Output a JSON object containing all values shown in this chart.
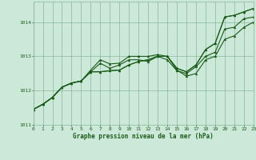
{
  "xlabel": "Graphe pression niveau de la mer (hPa)",
  "background_color": "#cce8d8",
  "line_color": "#1a5c1a",
  "grid_color": "#88b898",
  "xlim": [
    0,
    23
  ],
  "ylim": [
    1011.0,
    1014.6
  ],
  "yticks": [
    1011,
    1012,
    1013,
    1014
  ],
  "xticks": [
    0,
    1,
    2,
    3,
    4,
    5,
    6,
    7,
    8,
    9,
    10,
    11,
    12,
    13,
    14,
    15,
    16,
    17,
    18,
    19,
    20,
    21,
    22,
    23
  ],
  "series": [
    [
      1011.45,
      1011.6,
      1011.8,
      1012.1,
      1012.22,
      1012.28,
      1012.6,
      1012.9,
      1012.78,
      1012.8,
      1013.0,
      1013.0,
      1013.0,
      1013.05,
      1013.0,
      1012.65,
      1012.55,
      1012.75,
      1013.2,
      1013.38,
      1014.15,
      1014.2,
      1014.3,
      1014.4
    ],
    [
      1011.45,
      1011.6,
      1011.8,
      1012.1,
      1012.22,
      1012.28,
      1012.55,
      1012.55,
      1012.58,
      1012.6,
      1012.75,
      1012.85,
      1012.9,
      1013.0,
      1013.0,
      1012.65,
      1012.55,
      1012.75,
      1013.2,
      1013.38,
      1014.15,
      1014.2,
      1014.3,
      1014.4
    ],
    [
      1011.45,
      1011.6,
      1011.8,
      1012.1,
      1012.22,
      1012.28,
      1012.55,
      1012.8,
      1012.65,
      1012.75,
      1012.9,
      1012.9,
      1012.85,
      1013.0,
      1012.9,
      1012.58,
      1012.5,
      1012.7,
      1013.0,
      1013.12,
      1013.8,
      1013.85,
      1014.1,
      1014.15
    ],
    [
      1011.45,
      1011.6,
      1011.8,
      1012.1,
      1012.22,
      1012.28,
      1012.55,
      1012.55,
      1012.58,
      1012.6,
      1012.75,
      1012.85,
      1012.9,
      1013.0,
      1013.0,
      1012.6,
      1012.42,
      1012.5,
      1012.9,
      1013.0,
      1013.5,
      1013.6,
      1013.85,
      1014.0
    ]
  ]
}
